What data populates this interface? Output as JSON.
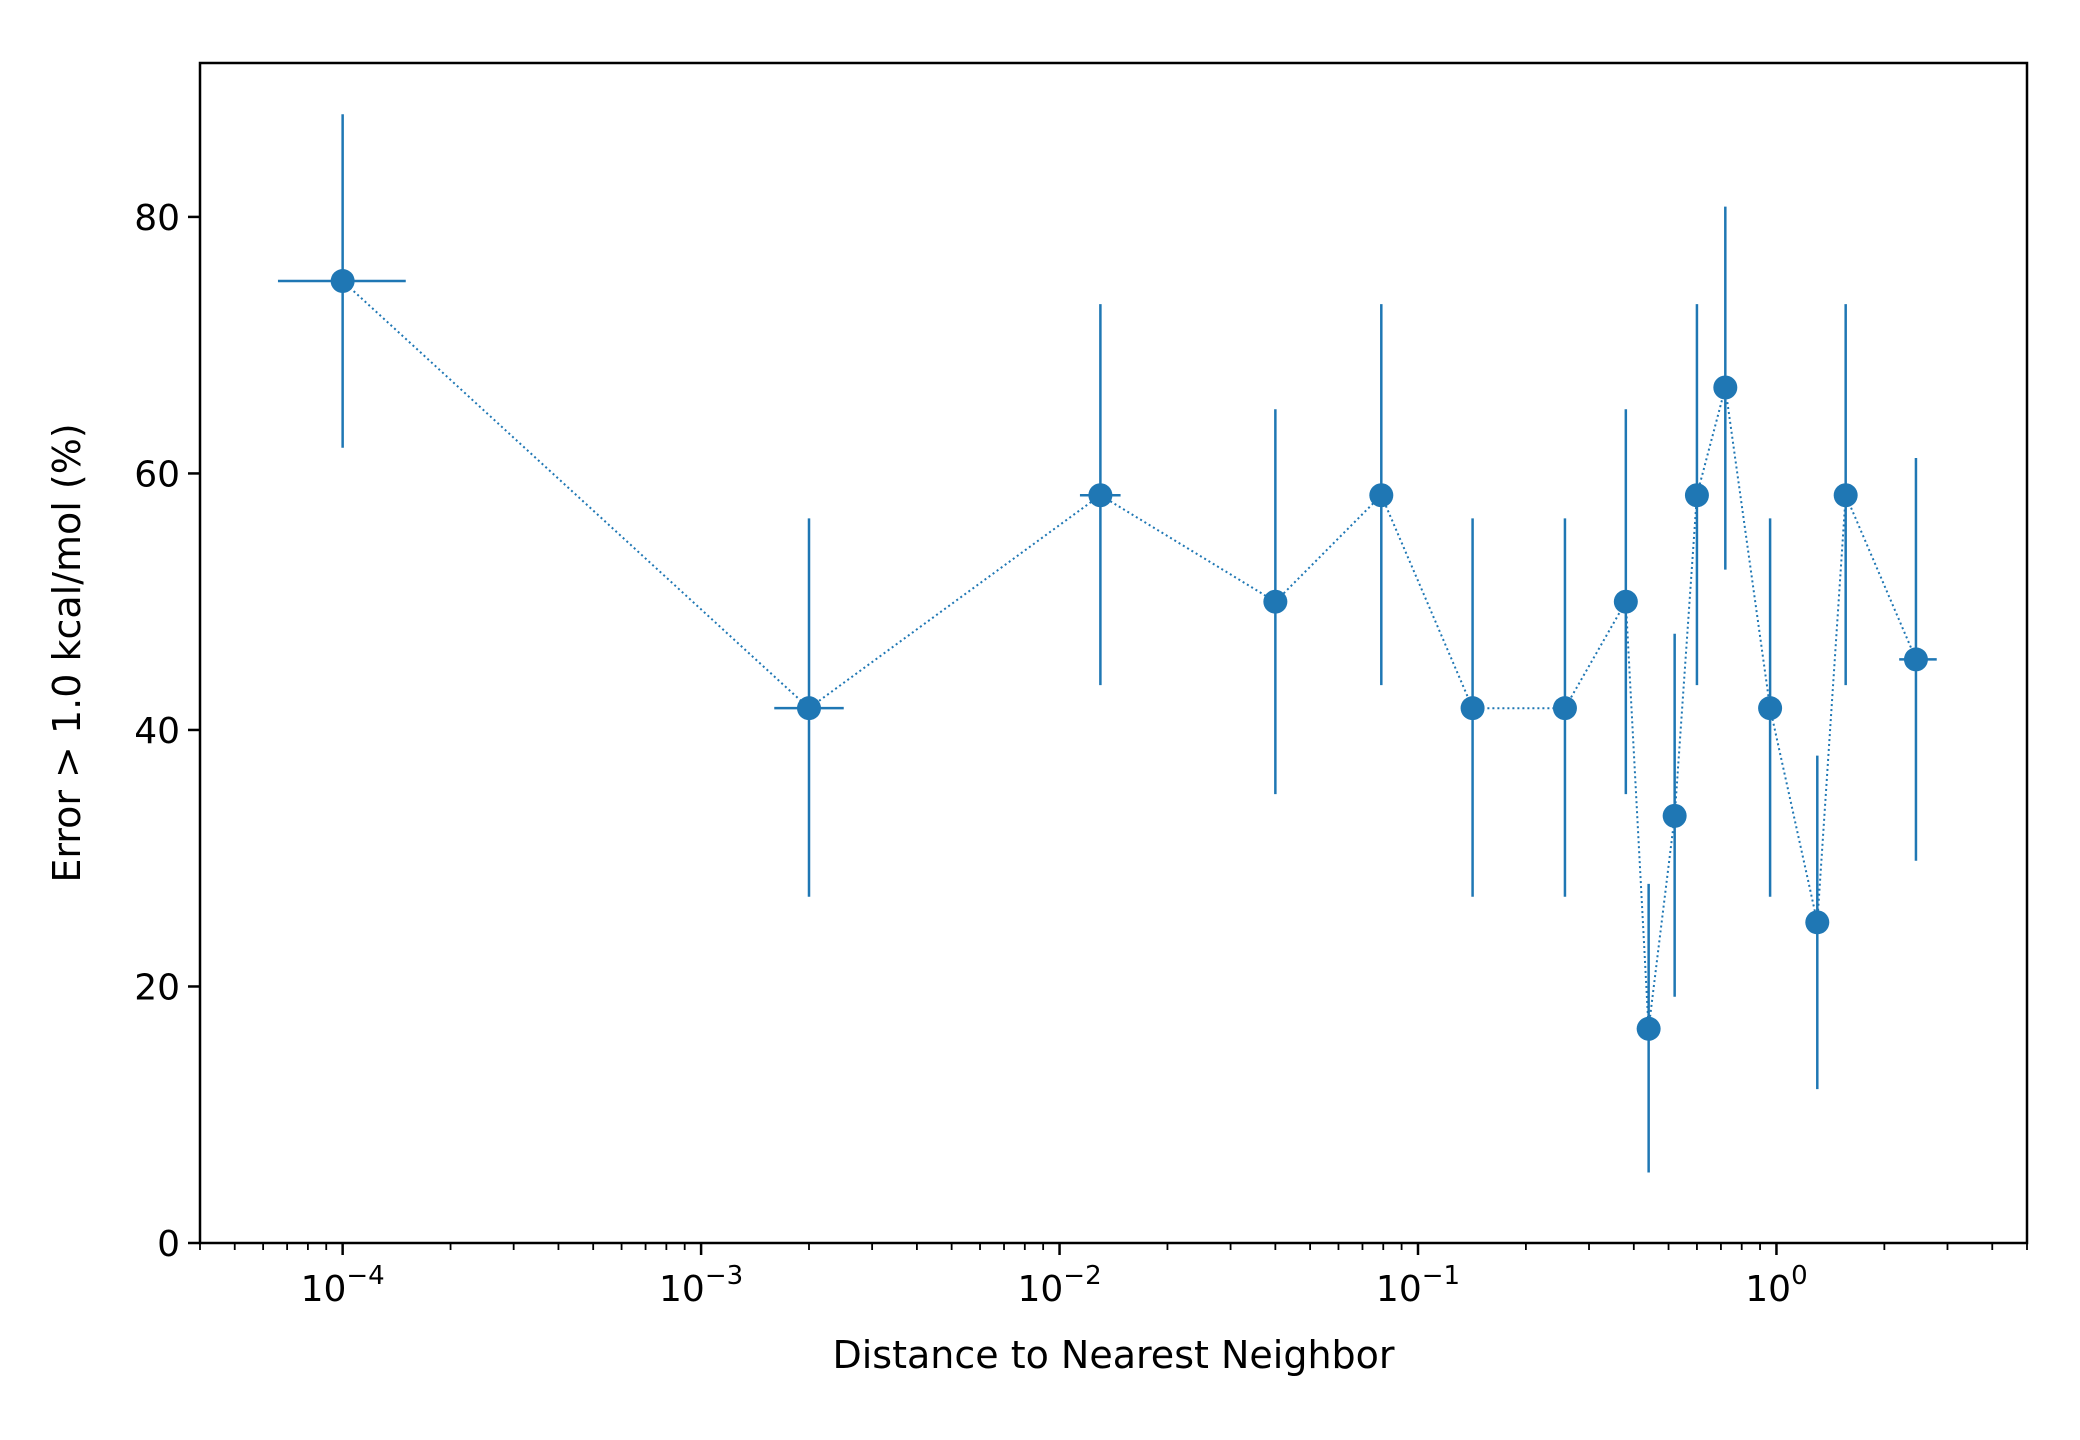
{
  "chart_data": {
    "type": "scatter",
    "title": "",
    "xlabel": "Distance to Nearest Neighbor",
    "ylabel": "Error > 1.0 kcal/mol (%)",
    "xscale": "log",
    "xlim": [
      4e-05,
      5.0
    ],
    "ylim": [
      0,
      92
    ],
    "grid": false,
    "legend": "none",
    "x_ticks": [
      {
        "value": 0.0001,
        "base": "10",
        "exp": "−4"
      },
      {
        "value": 0.001,
        "base": "10",
        "exp": "−3"
      },
      {
        "value": 0.01,
        "base": "10",
        "exp": "−2"
      },
      {
        "value": 0.1,
        "base": "10",
        "exp": "−1"
      },
      {
        "value": 1,
        "base": "10",
        "exp": "0"
      }
    ],
    "y_ticks": [
      {
        "value": 0,
        "label": "0"
      },
      {
        "value": 20,
        "label": "20"
      },
      {
        "value": 40,
        "label": "40"
      },
      {
        "value": 60,
        "label": "60"
      },
      {
        "value": 80,
        "label": "80"
      }
    ],
    "series": [
      {
        "color": "#1f77b4",
        "line_style": "dotted",
        "points": [
          {
            "x": 0.0001,
            "y": 75.0,
            "yerr": [
              62.0,
              88.0
            ],
            "xerr": [
              6.6e-05,
              0.00015
            ]
          },
          {
            "x": 0.002,
            "y": 41.7,
            "yerr": [
              27.0,
              56.5
            ],
            "xerr": [
              0.0016,
              0.0025
            ]
          },
          {
            "x": 0.013,
            "y": 58.3,
            "yerr": [
              43.5,
              73.2
            ],
            "xerr": [
              0.0114,
              0.0148
            ]
          },
          {
            "x": 0.04,
            "y": 50.0,
            "yerr": [
              35.0,
              65.0
            ],
            "xerr": null
          },
          {
            "x": 0.079,
            "y": 58.3,
            "yerr": [
              43.5,
              73.2
            ],
            "xerr": null
          },
          {
            "x": 0.142,
            "y": 41.7,
            "yerr": [
              27.0,
              56.5
            ],
            "xerr": null
          },
          {
            "x": 0.257,
            "y": 41.7,
            "yerr": [
              27.0,
              56.5
            ],
            "xerr": null
          },
          {
            "x": 0.38,
            "y": 50.0,
            "yerr": [
              35.0,
              65.0
            ],
            "xerr": null
          },
          {
            "x": 0.44,
            "y": 16.7,
            "yerr": [
              5.5,
              28.0
            ],
            "xerr": null
          },
          {
            "x": 0.52,
            "y": 33.3,
            "yerr": [
              19.2,
              47.5
            ],
            "xerr": null
          },
          {
            "x": 0.6,
            "y": 58.3,
            "yerr": [
              43.5,
              73.2
            ],
            "xerr": null
          },
          {
            "x": 0.72,
            "y": 66.7,
            "yerr": [
              52.5,
              80.8
            ],
            "xerr": null
          },
          {
            "x": 0.96,
            "y": 41.7,
            "yerr": [
              27.0,
              56.5
            ],
            "xerr": null
          },
          {
            "x": 1.3,
            "y": 25.0,
            "yerr": [
              12.0,
              38.0
            ],
            "xerr": null
          },
          {
            "x": 1.56,
            "y": 58.3,
            "yerr": [
              43.5,
              73.2
            ],
            "xerr": null
          },
          {
            "x": 2.45,
            "y": 45.5,
            "yerr": [
              29.8,
              61.2
            ],
            "xerr": [
              2.2,
              2.8
            ]
          }
        ]
      }
    ]
  }
}
